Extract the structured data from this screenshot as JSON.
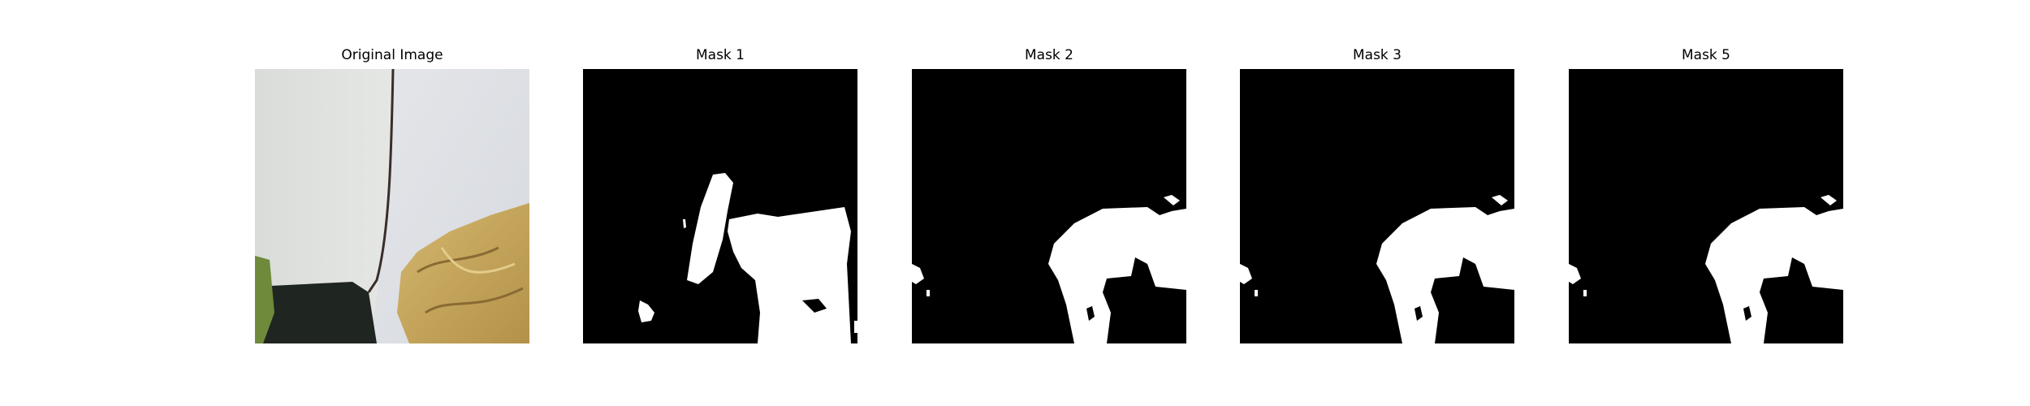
{
  "figure": {
    "panels": [
      {
        "title": "Original Image"
      },
      {
        "title": "Mask 1"
      },
      {
        "title": "Mask 2"
      },
      {
        "title": "Mask 3"
      },
      {
        "title": "Mask 5"
      }
    ]
  },
  "colors": {
    "background": "#ffffff",
    "mask_background": "#000000",
    "mask_foreground": "#ffffff",
    "wall_light": "#e6e7e6",
    "wall_right": "#dde0e4",
    "fabric": "#c7a75e",
    "dark_corner": "#1f2621",
    "green_object": "#6e8a3a"
  }
}
